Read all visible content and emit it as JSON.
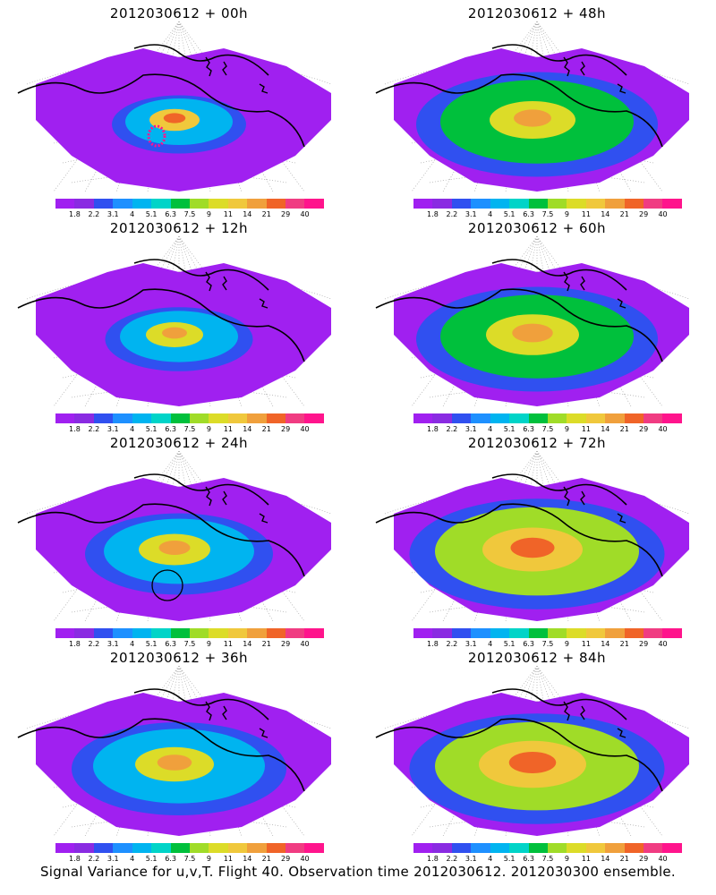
{
  "panels": [
    {
      "title": "2012030612 + 00h"
    },
    {
      "title": "2012030612 + 48h"
    },
    {
      "title": "2012030612 + 12h"
    },
    {
      "title": "2012030612 + 60h"
    },
    {
      "title": "2012030612 + 24h"
    },
    {
      "title": "2012030612 + 72h"
    },
    {
      "title": "2012030612 + 36h"
    },
    {
      "title": "2012030612 + 84h"
    }
  ],
  "colorbar": {
    "labels": [
      "1.8",
      "2.2",
      "3.1",
      "4",
      "5.1",
      "6.3",
      "7.5",
      "9",
      "11",
      "14",
      "21",
      "29",
      "40"
    ],
    "colors": [
      "#a020f0",
      "#8a2be2",
      "#3050f0",
      "#1e90ff",
      "#00b4f0",
      "#00d4c8",
      "#00c03c",
      "#a0dc28",
      "#dcdc28",
      "#f0c83c",
      "#f0a03c",
      "#f06428",
      "#f03c82",
      "#ff148c"
    ]
  },
  "caption": "Signal Variance for u,v,T. Flight 40. Observation time 2012030612. 2012030300 ensemble."
}
